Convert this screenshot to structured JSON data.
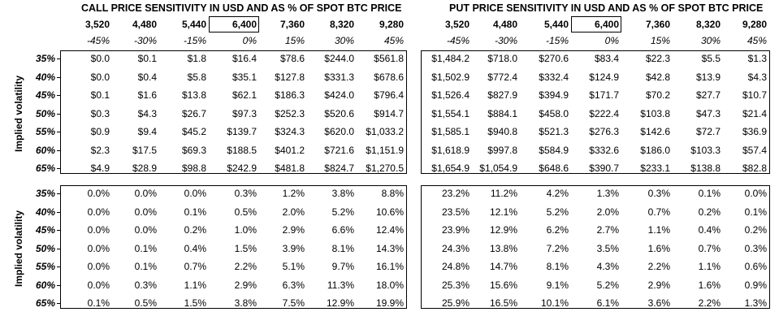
{
  "call_title": "CALL PRICE SENSITIVITY IN USD AND AS % OF SPOT BTC PRICE",
  "put_title": "PUT PRICE SENSITIVITY IN USD AND AS % OF SPOT BTC PRICE",
  "spot_prices": [
    "3,520",
    "4,480",
    "5,440",
    "6,400",
    "7,360",
    "8,320",
    "9,280"
  ],
  "spot_changes": [
    "-45%",
    "-30%",
    "-15%",
    "0%",
    "15%",
    "30%",
    "45%"
  ],
  "volatilities": [
    "35%",
    "40%",
    "45%",
    "50%",
    "55%",
    "60%",
    "65%"
  ],
  "axis_label": "Implied volatility",
  "call_usd": [
    [
      "$0.0",
      "$0.1",
      "$1.8",
      "$16.4",
      "$78.6",
      "$244.0",
      "$561.8"
    ],
    [
      "$0.0",
      "$0.4",
      "$5.8",
      "$35.1",
      "$127.8",
      "$331.3",
      "$678.6"
    ],
    [
      "$0.1",
      "$1.6",
      "$13.8",
      "$62.1",
      "$186.3",
      "$424.0",
      "$796.4"
    ],
    [
      "$0.3",
      "$4.3",
      "$26.7",
      "$97.3",
      "$252.3",
      "$520.6",
      "$914.7"
    ],
    [
      "$0.9",
      "$9.4",
      "$45.2",
      "$139.7",
      "$324.3",
      "$620.0",
      "$1,033.2"
    ],
    [
      "$2.3",
      "$17.5",
      "$69.3",
      "$188.5",
      "$401.2",
      "$721.6",
      "$1,151.9"
    ],
    [
      "$4.9",
      "$28.9",
      "$98.8",
      "$242.9",
      "$481.8",
      "$824.7",
      "$1,270.5"
    ]
  ],
  "put_usd": [
    [
      "$1,484.2",
      "$718.0",
      "$270.6",
      "$83.4",
      "$22.3",
      "$5.5",
      "$1.3"
    ],
    [
      "$1,502.9",
      "$772.4",
      "$332.4",
      "$124.9",
      "$42.8",
      "$13.9",
      "$4.3"
    ],
    [
      "$1,526.4",
      "$827.9",
      "$394.9",
      "$171.7",
      "$70.2",
      "$27.7",
      "$10.7"
    ],
    [
      "$1,554.1",
      "$884.1",
      "$458.0",
      "$222.4",
      "$103.8",
      "$47.3",
      "$21.4"
    ],
    [
      "$1,585.1",
      "$940.8",
      "$521.3",
      "$276.3",
      "$142.6",
      "$72.7",
      "$36.9"
    ],
    [
      "$1,618.9",
      "$997.8",
      "$584.9",
      "$332.6",
      "$186.0",
      "$103.3",
      "$57.4"
    ],
    [
      "$1,654.9",
      "$1,054.9",
      "$648.6",
      "$390.7",
      "$233.1",
      "$138.8",
      "$82.8"
    ]
  ],
  "call_pct": [
    [
      "0.0%",
      "0.0%",
      "0.0%",
      "0.3%",
      "1.2%",
      "3.8%",
      "8.8%"
    ],
    [
      "0.0%",
      "0.0%",
      "0.1%",
      "0.5%",
      "2.0%",
      "5.2%",
      "10.6%"
    ],
    [
      "0.0%",
      "0.0%",
      "0.2%",
      "1.0%",
      "2.9%",
      "6.6%",
      "12.4%"
    ],
    [
      "0.0%",
      "0.1%",
      "0.4%",
      "1.5%",
      "3.9%",
      "8.1%",
      "14.3%"
    ],
    [
      "0.0%",
      "0.1%",
      "0.7%",
      "2.2%",
      "5.1%",
      "9.7%",
      "16.1%"
    ],
    [
      "0.0%",
      "0.3%",
      "1.1%",
      "2.9%",
      "6.3%",
      "11.3%",
      "18.0%"
    ],
    [
      "0.1%",
      "0.5%",
      "1.5%",
      "3.8%",
      "7.5%",
      "12.9%",
      "19.9%"
    ]
  ],
  "put_pct": [
    [
      "23.2%",
      "11.2%",
      "4.2%",
      "1.3%",
      "0.3%",
      "0.1%",
      "0.0%"
    ],
    [
      "23.5%",
      "12.1%",
      "5.2%",
      "2.0%",
      "0.7%",
      "0.2%",
      "0.1%"
    ],
    [
      "23.9%",
      "12.9%",
      "6.2%",
      "2.7%",
      "1.1%",
      "0.4%",
      "0.2%"
    ],
    [
      "24.3%",
      "13.8%",
      "7.2%",
      "3.5%",
      "1.6%",
      "0.7%",
      "0.3%"
    ],
    [
      "24.8%",
      "14.7%",
      "8.1%",
      "4.3%",
      "2.2%",
      "1.1%",
      "0.6%"
    ],
    [
      "25.3%",
      "15.6%",
      "9.1%",
      "5.2%",
      "2.9%",
      "1.6%",
      "0.9%"
    ],
    [
      "25.9%",
      "16.5%",
      "10.1%",
      "6.1%",
      "3.6%",
      "2.2%",
      "1.3%"
    ]
  ]
}
